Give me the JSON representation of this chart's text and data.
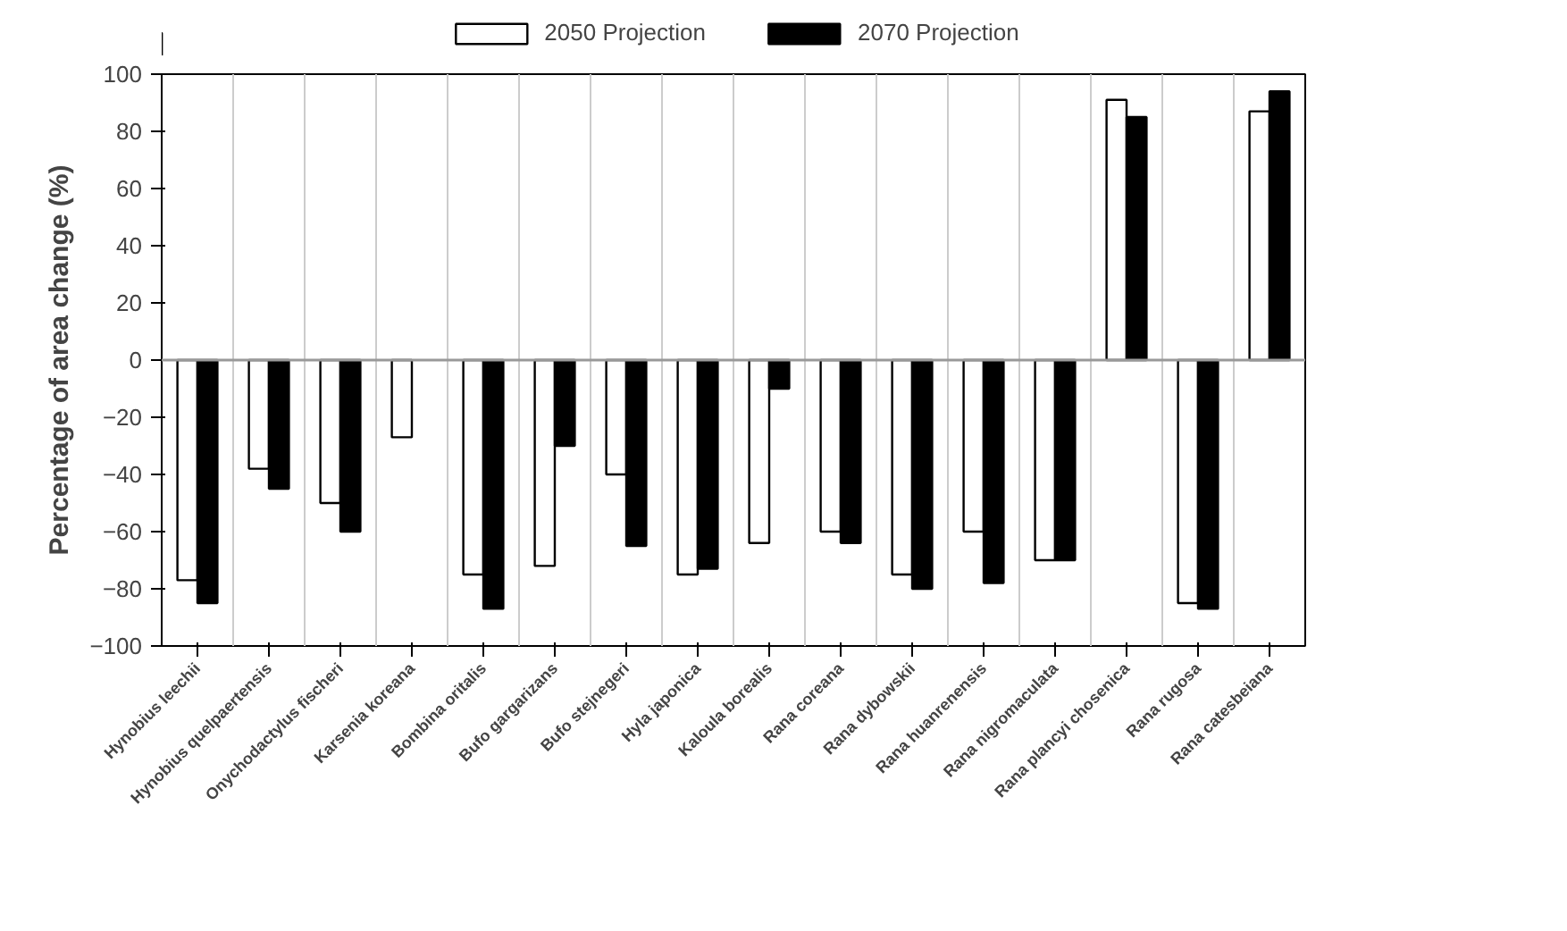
{
  "chart_data": {
    "type": "bar",
    "ylabel": "Percentage of area change (%)",
    "categories": [
      "Hynobius leechii",
      "Hynobius quelpaertensis",
      "Onychodactylus fischeri",
      "Karsenia koreana",
      "Bombina oritalis",
      "Bufo gargarizans",
      "Bufo stejnegeri",
      "Hyla japonica",
      "Kaloula borealis",
      "Rana coreana",
      "Rana dybowskii",
      "Rana huanrenensis",
      "Rana nigromaculata",
      "Rana plancyi chosenica",
      "Rana rugosa",
      "Rana catesbeiana"
    ],
    "series": [
      {
        "name": "2050 Projection",
        "color": "#ffffff",
        "values": [
          -77,
          -38,
          -50,
          -27,
          -75,
          -72,
          -40,
          -75,
          -64,
          -60,
          -75,
          -60,
          -70,
          91,
          -85,
          87
        ]
      },
      {
        "name": "2070 Projection",
        "color": "#000000",
        "values": [
          -85,
          -45,
          -60,
          null,
          -87,
          -30,
          -65,
          -73,
          -10,
          -64,
          -80,
          -78,
          -70,
          85,
          -87,
          94
        ]
      }
    ],
    "ylim": [
      -100,
      100
    ],
    "yticks": [
      -100,
      -80,
      -60,
      -40,
      -20,
      0,
      20,
      40,
      60,
      80,
      100
    ],
    "grid": "x",
    "legend": "top"
  }
}
